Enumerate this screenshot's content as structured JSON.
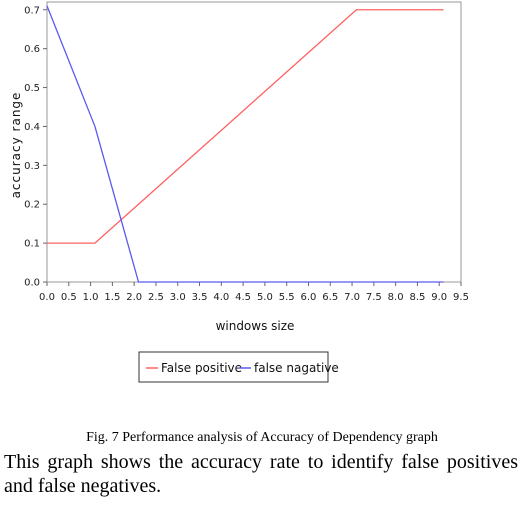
{
  "chart_data": {
    "type": "line",
    "xlabel": "windows size",
    "ylabel": "accuracy range",
    "xlim": [
      0,
      9.5
    ],
    "ylim": [
      0,
      0.72
    ],
    "x_ticks": [
      "0.0",
      "0.5",
      "1.0",
      "1.5",
      "2.0",
      "2.5",
      "3.0",
      "3.5",
      "4.0",
      "4.5",
      "5.0",
      "5.5",
      "6.0",
      "6.5",
      "7.0",
      "7.5",
      "8.0",
      "8.5",
      "9.0",
      "9.5"
    ],
    "y_ticks": [
      "0.0",
      "0.1",
      "0.2",
      "0.3",
      "0.4",
      "0.5",
      "0.6",
      "0.7"
    ],
    "grid": false,
    "legend_position": "bottom",
    "series": [
      {
        "name": "False positive",
        "color": "#ff6060",
        "x": [
          0.0,
          1.1,
          7.1,
          9.1
        ],
        "y": [
          0.1,
          0.1,
          0.7,
          0.7
        ]
      },
      {
        "name": "false nagative",
        "color": "#5a5af0",
        "x": [
          0.0,
          1.1,
          2.1,
          2.2,
          9.1
        ],
        "y": [
          0.71,
          0.4,
          0.0,
          0.0,
          0.0
        ]
      }
    ]
  },
  "caption": "Fig. 7 Performance analysis of Accuracy of Dependency graph",
  "paragraph": "This graph shows the accuracy rate to identify false positives and false negatives."
}
